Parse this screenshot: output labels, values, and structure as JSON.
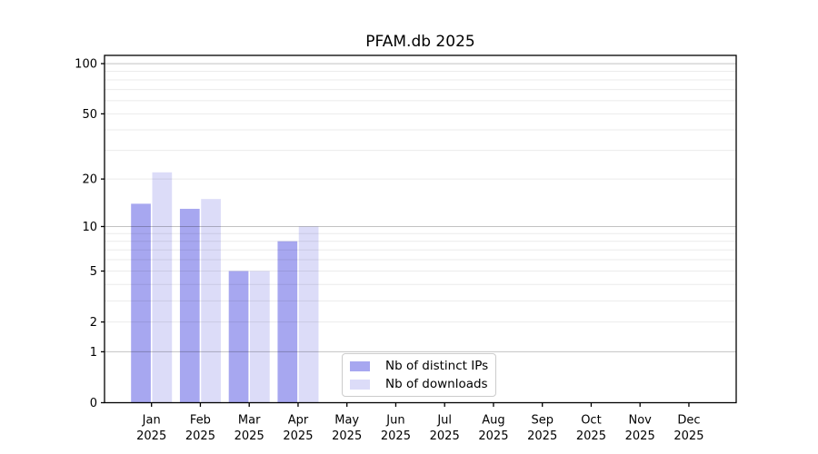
{
  "title": "PFAM.db 2025",
  "colors": {
    "distinct_ips": "#a7a7f0",
    "downloads": "#dcdcf8",
    "grid_major": "#c2c2c2",
    "grid_minor": "#ebebeb",
    "axis": "#000000",
    "legend_border": "#cccccc",
    "background": "#ffffff"
  },
  "chart_data": {
    "type": "bar",
    "title": "PFAM.db 2025",
    "yscale": "log1p",
    "months": [
      "Jan",
      "Feb",
      "Mar",
      "Apr",
      "May",
      "Jun",
      "Jul",
      "Aug",
      "Sep",
      "Oct",
      "Nov",
      "Dec"
    ],
    "year": "2025",
    "series": [
      {
        "name": "Nb of distinct IPs",
        "color": "#a7a7f0",
        "values": [
          14,
          13,
          5,
          8,
          0,
          0,
          0,
          0,
          0,
          0,
          0,
          0
        ]
      },
      {
        "name": "Nb of downloads",
        "color": "#dcdcf8",
        "values": [
          22,
          15,
          5,
          10,
          0,
          0,
          0,
          0,
          0,
          0,
          0,
          0
        ]
      }
    ],
    "yticks": [
      0,
      1,
      2,
      5,
      10,
      20,
      50,
      100
    ],
    "major_gridlines": [
      1,
      10,
      100
    ],
    "minor_gridlines": [
      2,
      3,
      4,
      5,
      6,
      7,
      8,
      9,
      20,
      30,
      40,
      50,
      60,
      70,
      80,
      90
    ],
    "ylim": [
      0,
      112
    ],
    "xlabel": "",
    "ylabel": "",
    "grid": "on",
    "legend_position": "lower-center-inside"
  }
}
